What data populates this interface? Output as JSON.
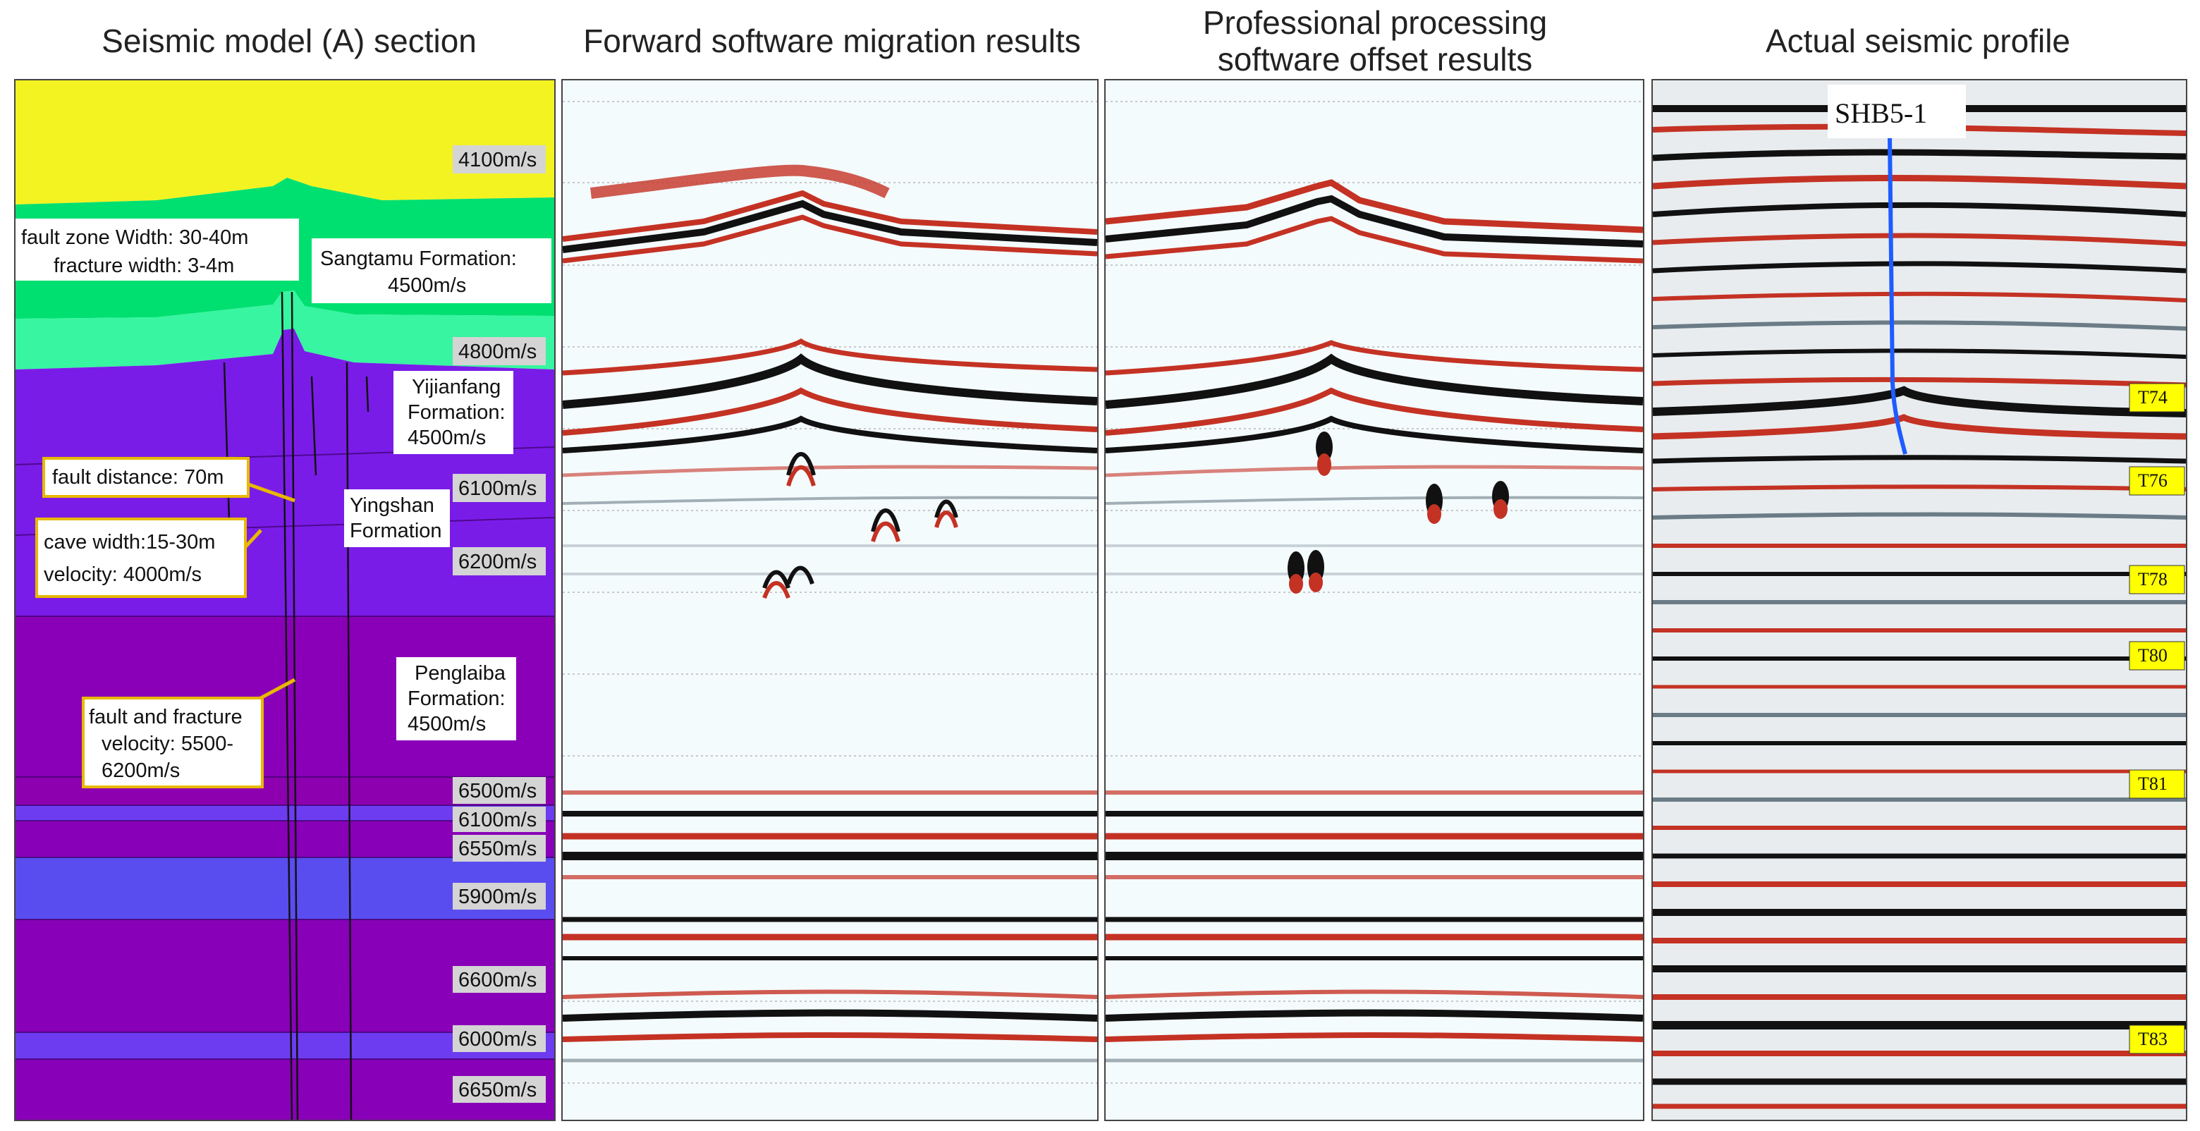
{
  "panels": {
    "model": {
      "title": "Seismic model (A) section",
      "velocities": [
        "4100m/s",
        "4800m/s",
        "6100m/s",
        "6200m/s",
        "6500m/s",
        "6100m/s",
        "6550m/s",
        "5900m/s",
        "6600m/s",
        "6000m/s",
        "6650m/s"
      ],
      "formations": {
        "sangtamu": [
          "Sangtamu Formation:",
          "4500m/s"
        ],
        "yijianfang": [
          "Yijianfang",
          "Formation:",
          "4500m/s"
        ],
        "yingshan": [
          "Yingshan",
          "Formation"
        ],
        "penglaiba": [
          "Penglaiba",
          "Formation:",
          "4500m/s"
        ]
      },
      "annotations": {
        "fault_zone": [
          "fault zone Width: 30-40m",
          "fracture width: 3-4m"
        ],
        "fault_distance": "fault distance: 70m",
        "cave": [
          "cave width:15-30m",
          "velocity: 4000m/s"
        ],
        "fault_fracture": [
          "fault and fracture",
          "velocity: 5500-",
          "6200m/s"
        ]
      },
      "colors": {
        "top_layer": "#f3f321",
        "green_layer": "#00e070",
        "light_green": "#37f5a0",
        "purple": "#7a1ce8",
        "dark_purple": "#8a00b8",
        "blue_purple": "#5a4df0",
        "annotation_border": "#e8b800"
      }
    },
    "forward": {
      "title": "Forward software migration results"
    },
    "professional": {
      "title": [
        "Professional processing",
        "software offset results"
      ]
    },
    "actual": {
      "title": "Actual seismic profile",
      "well": "SHB5-1",
      "markers": [
        "T74",
        "T76",
        "T78",
        "T80",
        "T81",
        "T83"
      ],
      "colors": {
        "marker_bg": "#ffff00",
        "well_line": "#1e5cff"
      }
    }
  }
}
